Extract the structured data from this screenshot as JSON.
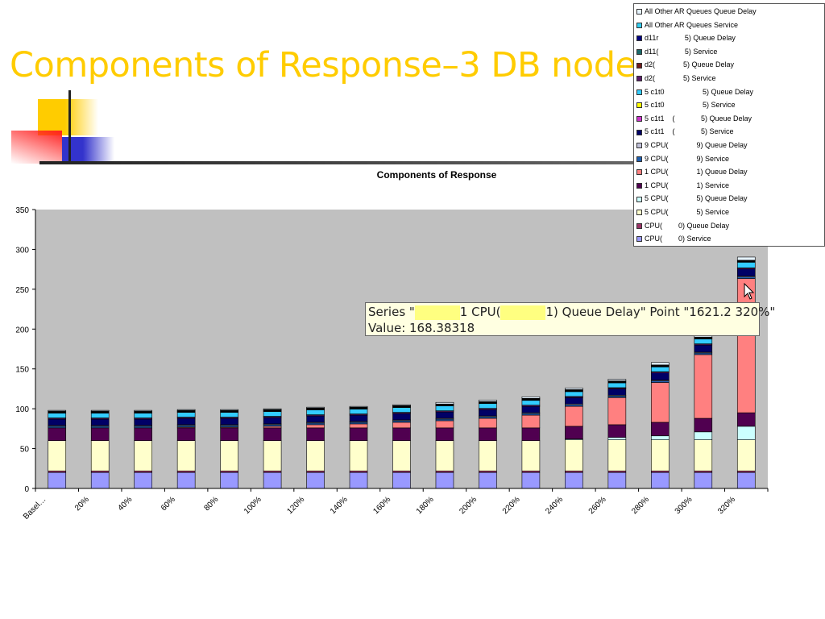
{
  "slide": {
    "title": "Components of Response–3 DB nodes"
  },
  "tooltip": {
    "part1": "Series \"",
    "part2": "1 CPU(",
    "part3": "1) Queue Delay\" Point \"1621.2 320%\"",
    "value_line": "Value: 168.38318"
  },
  "chart_data": {
    "type": "bar",
    "stacked": true,
    "title": "Components of Response",
    "xlabel": "",
    "ylabel": "",
    "ylim": [
      0,
      350
    ],
    "yticks": [
      "0",
      "50",
      "100",
      "150",
      "200",
      "250",
      "300",
      "350"
    ],
    "categories": [
      "Basel…",
      "20%",
      "40%",
      "60%",
      "80%",
      "100%",
      "120%",
      "140%",
      "160%",
      "180%",
      "200%",
      "220%",
      "240%",
      "260%",
      "280%",
      "300%",
      "320%"
    ],
    "legend_position": "top-right",
    "series": [
      {
        "name": "CPU(        0) Service",
        "color": "#9999ff",
        "values": [
          20,
          20,
          20,
          20,
          20,
          20,
          20,
          20,
          20,
          20,
          20,
          20,
          20,
          20,
          20,
          20,
          20
        ]
      },
      {
        "name": "CPU(        0) Queue Delay",
        "color": "#993366",
        "values": [
          2,
          2,
          2,
          2,
          2,
          2,
          2,
          2,
          2,
          2,
          2,
          2,
          2,
          2,
          2,
          2,
          2
        ]
      },
      {
        "name": "5 CPU(              5) Service",
        "color": "#ffffcc",
        "values": [
          38,
          38,
          38,
          38,
          38,
          38,
          38,
          38,
          38,
          38,
          38,
          38,
          39,
          39,
          39,
          39,
          39
        ]
      },
      {
        "name": "5 CPU(              5) Queue Delay",
        "color": "#ccffff",
        "values": [
          0,
          0,
          0,
          0,
          0,
          0,
          0,
          0,
          0,
          0,
          0,
          0,
          1,
          3,
          5,
          10,
          17
        ]
      },
      {
        "name": "1 CPU(              1) Service",
        "color": "#500050",
        "values": [
          16,
          16,
          16,
          16,
          16,
          16,
          16,
          16,
          16,
          16,
          16,
          16,
          16,
          16,
          17,
          17,
          17
        ]
      },
      {
        "name": "1 CPU(              1) Queue Delay",
        "color": "#ff8080",
        "values": [
          0,
          0,
          0,
          1,
          1,
          2,
          4,
          5,
          7,
          9,
          12,
          16,
          25,
          34,
          50,
          80,
          168.38318
        ]
      },
      {
        "name": "9 CPU(              9) Service",
        "color": "#1f5fb0",
        "values": [
          2,
          2,
          2,
          2,
          2,
          2,
          2,
          2,
          2,
          2,
          2,
          2,
          2,
          2,
          2,
          2,
          2
        ]
      },
      {
        "name": "9 CPU(              9) Queue Delay",
        "color": "#c0c0d8",
        "values": [
          1,
          1,
          1,
          1,
          1,
          1,
          1,
          1,
          1,
          1,
          1,
          1,
          1,
          1,
          1,
          1,
          1
        ]
      },
      {
        "name": "5 c1t1    (             5) Service",
        "color": "#000066",
        "values": [
          8,
          8,
          8,
          8,
          8,
          8,
          8,
          8,
          8,
          8,
          8,
          8,
          8,
          8,
          9,
          9,
          9
        ]
      },
      {
        "name": "5 c1t1    (             5) Queue Delay",
        "color": "#cc33cc",
        "values": [
          1,
          1,
          1,
          1,
          1,
          1,
          1,
          1,
          1,
          1,
          1,
          1,
          1,
          1,
          1,
          1,
          1
        ]
      },
      {
        "name": "5 c1t0                   5) Service",
        "color": "#ffff00",
        "values": [
          0.5,
          0.5,
          0.5,
          0.5,
          0.5,
          0.5,
          0.5,
          0.5,
          0.5,
          0.5,
          0.5,
          0.5,
          0.5,
          0.5,
          0.5,
          0.5,
          0.5
        ]
      },
      {
        "name": "5 c1t0                   5) Queue Delay",
        "color": "#33ccff",
        "values": [
          6,
          6,
          6,
          6,
          6,
          6,
          6,
          6,
          6,
          6,
          6,
          6,
          6,
          6,
          6,
          6,
          7
        ]
      },
      {
        "name": "d2(              5) Service",
        "color": "#5a1a6a",
        "values": [
          0.5,
          0.5,
          0.5,
          0.5,
          0.5,
          0.5,
          0.5,
          0.5,
          0.5,
          0.5,
          0.5,
          0.5,
          0.5,
          0.5,
          0.5,
          0.5,
          0.5
        ]
      },
      {
        "name": "d2(              5) Queue Delay",
        "color": "#701c1c",
        "values": [
          0.5,
          0.5,
          0.5,
          0.5,
          0.5,
          0.5,
          0.5,
          0.5,
          0.5,
          0.5,
          0.5,
          0.5,
          0.5,
          0.5,
          0.5,
          0.5,
          0.5
        ]
      },
      {
        "name": "d11(             5) Service",
        "color": "#1a6a6a",
        "values": [
          0.5,
          0.5,
          0.5,
          0.5,
          0.5,
          0.5,
          0.5,
          0.5,
          0.5,
          0.5,
          0.5,
          0.5,
          0.5,
          0.5,
          0.5,
          0.5,
          0.5
        ]
      },
      {
        "name": "d11r             5) Queue Delay",
        "color": "#000080",
        "values": [
          0.5,
          0.5,
          0.5,
          0.5,
          0.5,
          0.5,
          0.5,
          0.5,
          0.5,
          0.5,
          0.5,
          0.5,
          0.5,
          0.5,
          0.5,
          0.5,
          0.5
        ]
      },
      {
        "name": "All Other AR Queues Service",
        "color": "#33ccee",
        "values": [
          0.5,
          0.5,
          0.5,
          0.5,
          0.5,
          0.5,
          0.5,
          0.5,
          0.5,
          0.5,
          0.5,
          0.5,
          0.5,
          0.5,
          0.5,
          0.5,
          0.5
        ]
      },
      {
        "name": "All Other AR Queues Queue Delay",
        "color": "#e6f4ff",
        "values": [
          1,
          1,
          1,
          1,
          1,
          1,
          1,
          1,
          1,
          2,
          2,
          2,
          2,
          2,
          3,
          3,
          4
        ]
      }
    ]
  }
}
